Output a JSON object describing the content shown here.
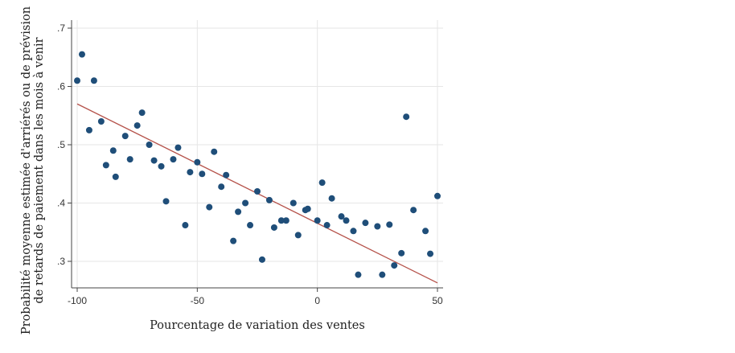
{
  "chart_data": {
    "type": "scatter",
    "xlabel": "Pourcentage de variation des ventes",
    "ylabel": [
      "Probabilité moyenne estimée d'arriérés ou de prévision",
      "de retards de paiement dans les mois à venir"
    ],
    "xlim": [
      -100,
      50
    ],
    "ylim": [
      0.28,
      0.71
    ],
    "x_ticks": [
      -100,
      -50,
      0,
      50
    ],
    "x_tick_labels": [
      "-100",
      "-50",
      "0",
      "50"
    ],
    "y_ticks": [
      0.3,
      0.4,
      0.5,
      0.6,
      0.7
    ],
    "y_tick_labels": [
      ".3",
      ".4",
      ".5",
      ".6",
      ".7"
    ],
    "grid": true,
    "colors": {
      "points": "#1f4e79",
      "fit_line": "#b5524a",
      "grid": "#e6e6e6",
      "axis": "#444444"
    },
    "series": [
      {
        "values": [
          [
            -100,
            0.61
          ],
          [
            -98,
            0.655
          ],
          [
            -95,
            0.525
          ],
          [
            -93,
            0.61
          ],
          [
            -90,
            0.54
          ],
          [
            -88,
            0.465
          ],
          [
            -85,
            0.49
          ],
          [
            -84,
            0.445
          ],
          [
            -80,
            0.515
          ],
          [
            -78,
            0.475
          ],
          [
            -75,
            0.533
          ],
          [
            -73,
            0.555
          ],
          [
            -70,
            0.5
          ],
          [
            -68,
            0.473
          ],
          [
            -65,
            0.463
          ],
          [
            -63,
            0.403
          ],
          [
            -60,
            0.475
          ],
          [
            -58,
            0.495
          ],
          [
            -55,
            0.362
          ],
          [
            -53,
            0.453
          ],
          [
            -50,
            0.47
          ],
          [
            -48,
            0.45
          ],
          [
            -45,
            0.393
          ],
          [
            -43,
            0.488
          ],
          [
            -40,
            0.428
          ],
          [
            -38,
            0.448
          ],
          [
            -35,
            0.335
          ],
          [
            -33,
            0.385
          ],
          [
            -30,
            0.4
          ],
          [
            -28,
            0.362
          ],
          [
            -25,
            0.42
          ],
          [
            -23,
            0.303
          ],
          [
            -20,
            0.405
          ],
          [
            -18,
            0.358
          ],
          [
            -15,
            0.37
          ],
          [
            -13,
            0.37
          ],
          [
            -10,
            0.4
          ],
          [
            -8,
            0.345
          ],
          [
            -5,
            0.388
          ],
          [
            -4,
            0.39
          ],
          [
            0,
            0.37
          ],
          [
            2,
            0.435
          ],
          [
            4,
            0.362
          ],
          [
            6,
            0.408
          ],
          [
            10,
            0.377
          ],
          [
            12,
            0.37
          ],
          [
            15,
            0.352
          ],
          [
            17,
            0.277
          ],
          [
            20,
            0.366
          ],
          [
            25,
            0.36
          ],
          [
            27,
            0.277
          ],
          [
            30,
            0.363
          ],
          [
            32,
            0.293
          ],
          [
            35,
            0.314
          ],
          [
            37,
            0.548
          ],
          [
            40,
            0.388
          ],
          [
            45,
            0.352
          ],
          [
            47,
            0.313
          ],
          [
            50,
            0.412
          ]
        ]
      }
    ],
    "fit_line": {
      "x": [
        -100,
        50
      ],
      "y": [
        0.57,
        0.263
      ]
    }
  }
}
